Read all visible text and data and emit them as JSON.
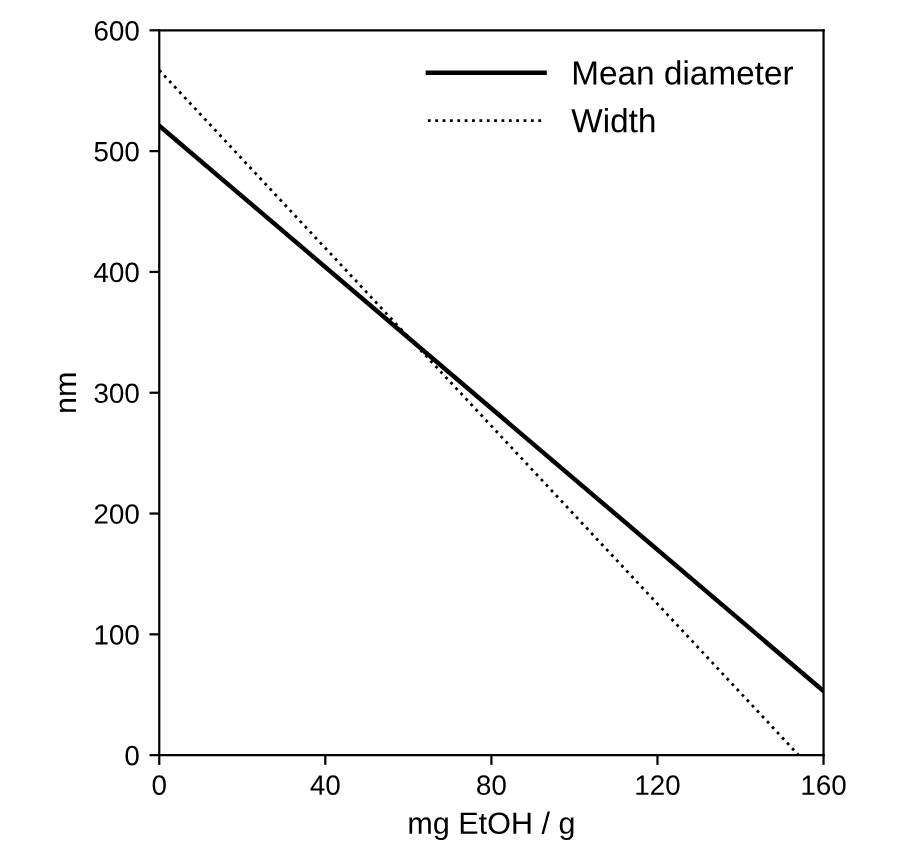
{
  "chart_data": {
    "type": "line",
    "xlabel": "mg EtOH / g",
    "ylabel": "nm",
    "xlim": [
      0,
      160
    ],
    "xticks": [
      0,
      40,
      80,
      120,
      160
    ],
    "ylim": [
      0,
      600
    ],
    "yticks": [
      0,
      100,
      200,
      300,
      400,
      500,
      600
    ],
    "grid": false,
    "legend": "top right",
    "marker": "none",
    "series": [
      {
        "name": "Mean diameter",
        "color": "#000000",
        "x": [
          0,
          160
        ],
        "values": [
          521,
          53
        ],
        "line_style": "solid"
      },
      {
        "name": "Width",
        "color": "#000000",
        "x": [
          0,
          154
        ],
        "values": [
          567,
          0
        ],
        "line_style": "dotted"
      }
    ]
  }
}
